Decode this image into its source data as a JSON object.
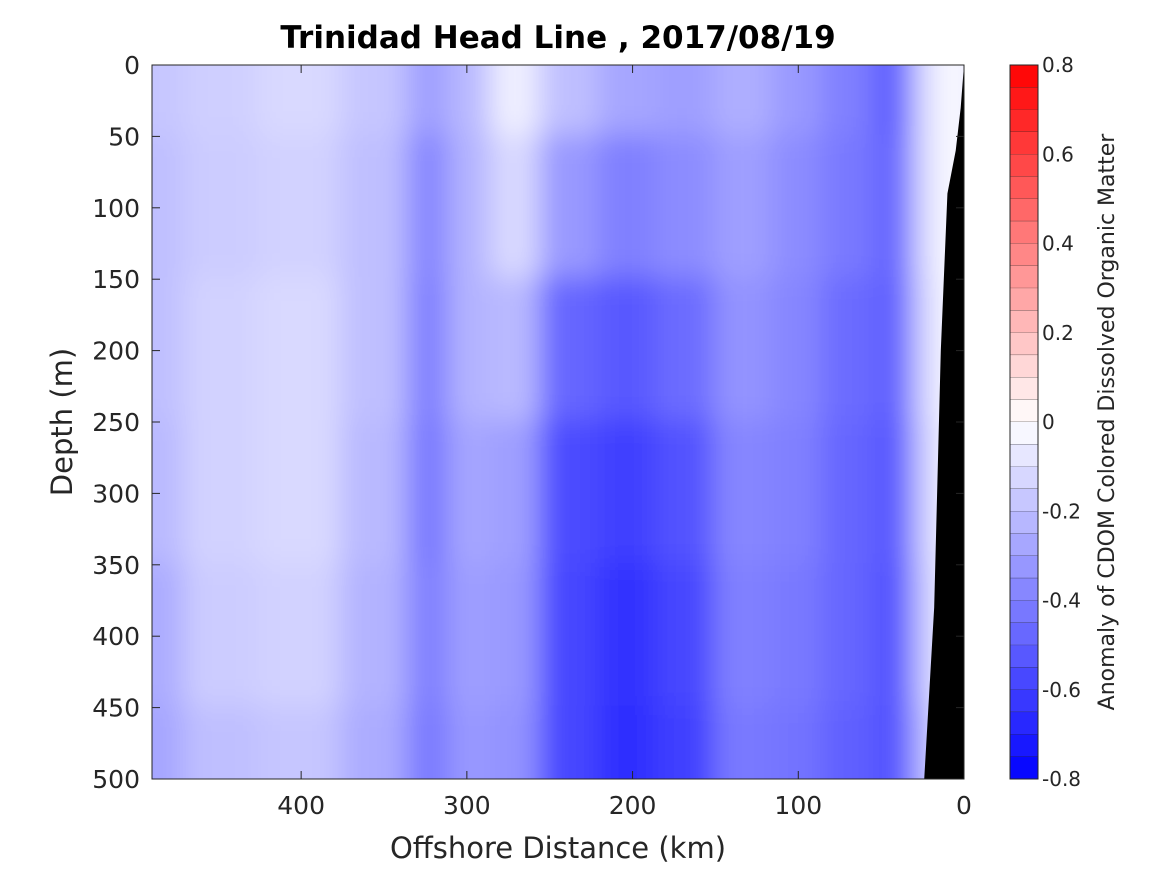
{
  "chart_data": {
    "type": "heatmap",
    "title": "Trinidad Head Line , 2017/08/19",
    "xlabel": "Offshore Distance (km)",
    "ylabel": "Depth (m)",
    "colorbar_label": "Anomaly of CDOM Colored Dissolved Organic Matter",
    "xlim": [
      490,
      0
    ],
    "ylim": [
      500,
      0
    ],
    "clim": [
      -0.8,
      0.8
    ],
    "x_ticks": [
      400,
      300,
      200,
      100,
      0
    ],
    "y_ticks": [
      0,
      50,
      100,
      150,
      200,
      250,
      300,
      350,
      400,
      450,
      500
    ],
    "colorbar_ticks": [
      0.8,
      0.6,
      0.4,
      0.2,
      0,
      -0.2,
      -0.4,
      -0.6,
      -0.8
    ],
    "colorbar_tick_labels": [
      "0.8",
      "0.6",
      "0.4",
      "0.2",
      "0",
      "-0.2",
      "-0.4",
      "-0.6",
      "-0.8"
    ],
    "colormap": "blue-white-red",
    "colors": {
      "low": "#0000ff",
      "mid": "#ffffff",
      "high": "#ff0000",
      "bottom": "#000000"
    },
    "distance_km": [
      490,
      450,
      400,
      350,
      320,
      300,
      270,
      240,
      200,
      170,
      130,
      100,
      70,
      40,
      20,
      5
    ],
    "depth_m": [
      0,
      100,
      200,
      300,
      400,
      500
    ],
    "anomaly": [
      [
        -0.18,
        -0.15,
        -0.12,
        -0.18,
        -0.3,
        -0.22,
        -0.05,
        -0.2,
        -0.28,
        -0.3,
        -0.25,
        -0.32,
        -0.4,
        -0.5,
        -0.1,
        0.0
      ],
      [
        -0.2,
        -0.16,
        -0.14,
        -0.2,
        -0.38,
        -0.24,
        -0.12,
        -0.32,
        -0.4,
        -0.36,
        -0.3,
        -0.36,
        -0.42,
        -0.48,
        -0.1,
        0.0
      ],
      [
        -0.2,
        -0.14,
        -0.12,
        -0.2,
        -0.4,
        -0.24,
        -0.22,
        -0.48,
        -0.52,
        -0.46,
        -0.34,
        -0.38,
        -0.46,
        -0.5,
        -0.12,
        0.0
      ],
      [
        -0.22,
        -0.14,
        -0.12,
        -0.22,
        -0.42,
        -0.28,
        -0.3,
        -0.56,
        -0.6,
        -0.54,
        -0.38,
        -0.4,
        -0.48,
        -0.52,
        -0.14,
        0.0
      ],
      [
        -0.26,
        -0.16,
        -0.14,
        -0.24,
        -0.4,
        -0.3,
        -0.32,
        -0.58,
        -0.64,
        -0.58,
        -0.4,
        -0.42,
        -0.48,
        -0.54,
        -0.16,
        0.0
      ],
      [
        -0.28,
        -0.2,
        -0.18,
        -0.26,
        -0.42,
        -0.32,
        -0.34,
        -0.58,
        -0.66,
        -0.6,
        -0.42,
        -0.44,
        -0.5,
        -0.54,
        -0.2,
        0.0
      ]
    ],
    "bottom_profile": {
      "distance_km": [
        0,
        2,
        5,
        10,
        14,
        18,
        24
      ],
      "depth_m": [
        0,
        30,
        60,
        90,
        200,
        380,
        500
      ]
    }
  }
}
